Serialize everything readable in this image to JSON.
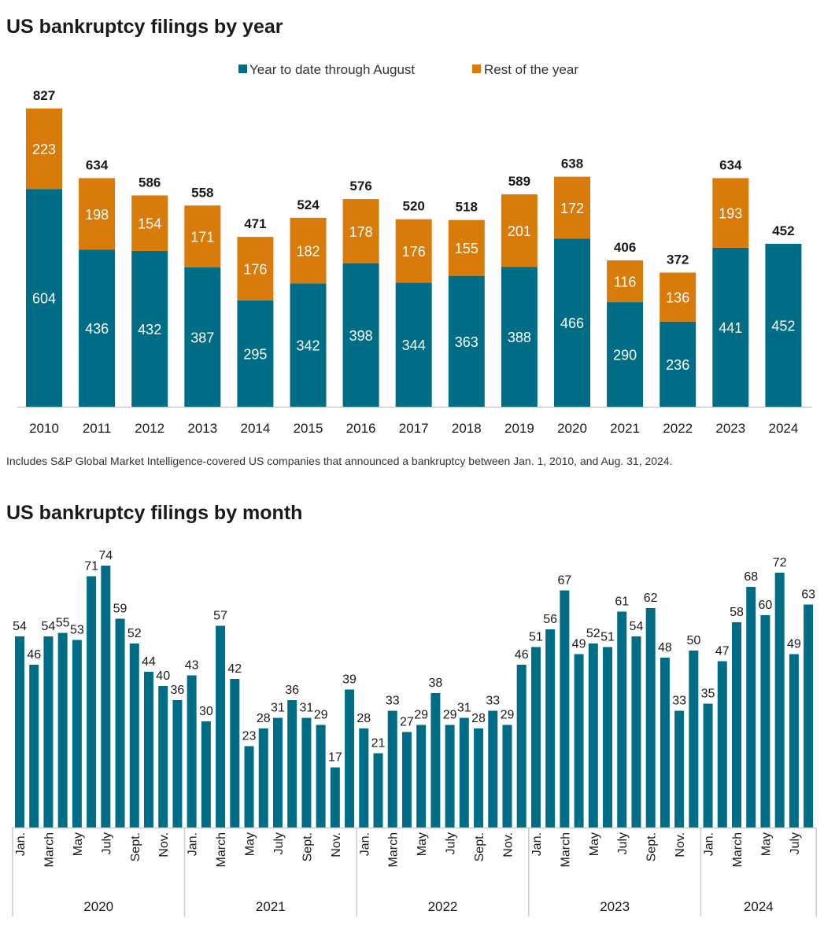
{
  "colors": {
    "ytd": "#006d86",
    "rest": "#d97b0b",
    "axis": "#cccccc"
  },
  "chart_data": [
    {
      "type": "bar",
      "stacked": true,
      "title": "US bankruptcy filings by year",
      "legend_position": "top",
      "categories": [
        "2010",
        "2011",
        "2012",
        "2013",
        "2014",
        "2015",
        "2016",
        "2017",
        "2018",
        "2019",
        "2020",
        "2021",
        "2022",
        "2023",
        "2024"
      ],
      "series": [
        {
          "name": "Year to date through August",
          "values": [
            604,
            436,
            432,
            387,
            295,
            342,
            398,
            344,
            363,
            388,
            466,
            290,
            236,
            441,
            452
          ]
        },
        {
          "name": "Rest of the year",
          "values": [
            223,
            198,
            154,
            171,
            176,
            182,
            178,
            176,
            155,
            201,
            172,
            116,
            136,
            193,
            null
          ]
        }
      ],
      "totals": [
        827,
        634,
        586,
        558,
        471,
        524,
        576,
        520,
        518,
        589,
        638,
        406,
        372,
        634,
        452
      ],
      "note": "Includes S&P Global Market Intelligence-covered US companies that announced a bankruptcy between Jan. 1, 2010, and Aug. 31, 2024.",
      "grid": false
    },
    {
      "type": "bar",
      "title": "US bankruptcy filings by month",
      "years": [
        "2020",
        "2021",
        "2022",
        "2023",
        "2024"
      ],
      "month_tick_labels": [
        "Jan.",
        "March",
        "May",
        "July",
        "Sept.",
        "Nov."
      ],
      "values": [
        [
          54,
          46,
          54,
          55,
          53,
          71,
          74,
          59,
          52,
          44,
          40,
          36
        ],
        [
          43,
          30,
          57,
          42,
          23,
          28,
          31,
          36,
          31,
          29,
          17,
          39
        ],
        [
          28,
          21,
          33,
          27,
          29,
          38,
          29,
          31,
          28,
          33,
          29,
          46
        ],
        [
          51,
          56,
          67,
          49,
          52,
          51,
          61,
          54,
          62,
          48,
          33,
          50
        ],
        [
          35,
          47,
          58,
          68,
          60,
          72,
          49,
          63
        ]
      ],
      "grid": false
    }
  ]
}
